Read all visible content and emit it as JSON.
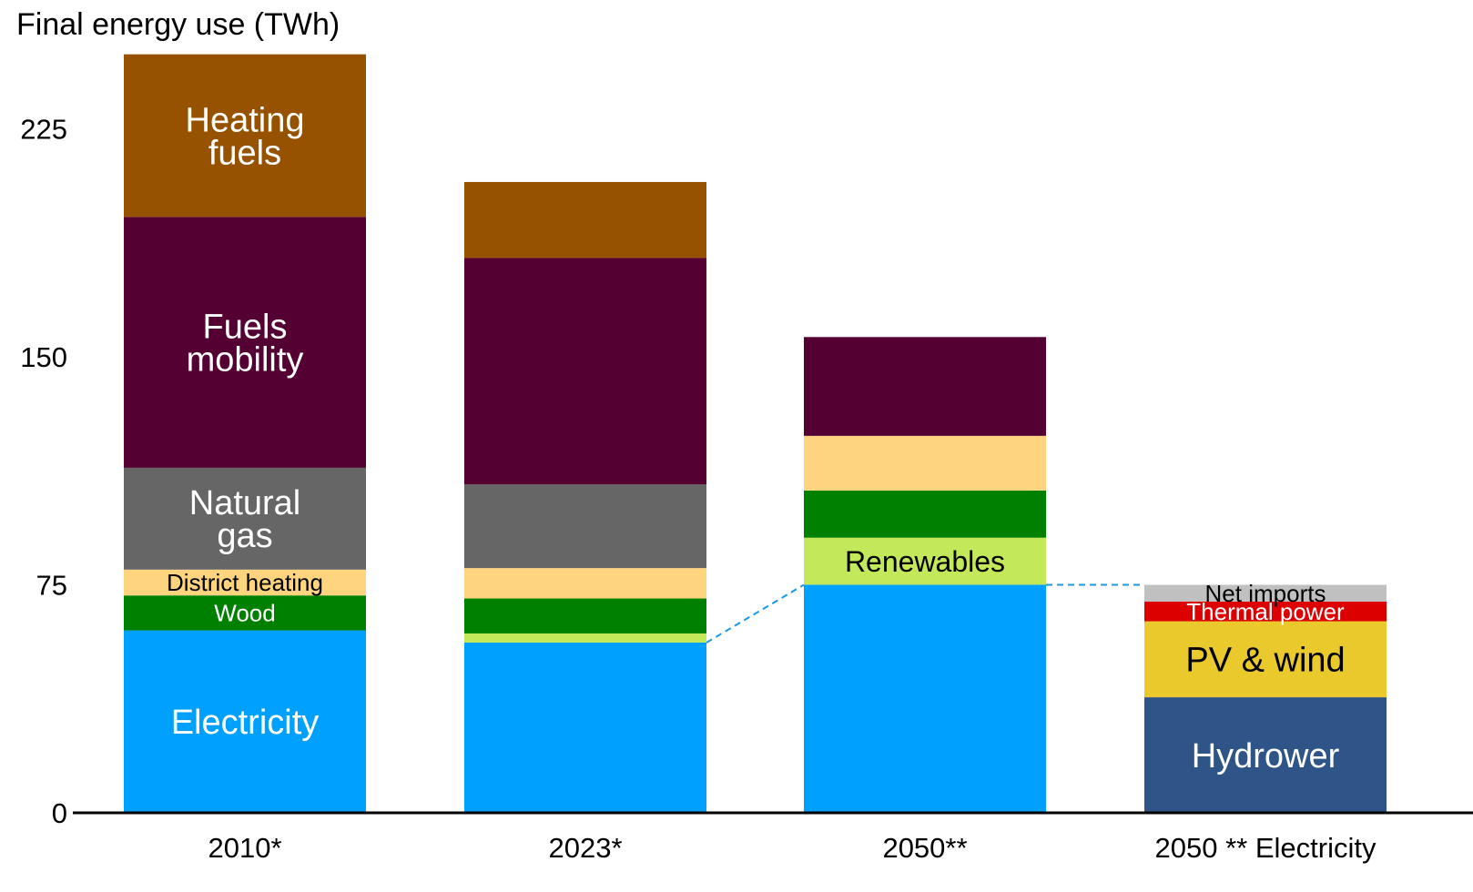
{
  "chart_data": {
    "type": "bar",
    "stacked": true,
    "ylabel": "Final energy use (TWh)",
    "yticks": [
      0,
      75,
      150,
      225
    ],
    "ylim": [
      0,
      250
    ],
    "grid": false,
    "categories": [
      "2010*",
      "2023*",
      "2050**",
      "2050 ** Electricity"
    ],
    "segments": [
      [
        {
          "name": "Electricity",
          "value": 60,
          "color": "#00a0ff",
          "label": [
            "Electricity"
          ],
          "label_color": "#ffffff"
        },
        {
          "name": "Wood",
          "value": 11.5,
          "color": "#008000",
          "label": [
            "Wood"
          ],
          "label_color": "#ffffff"
        },
        {
          "name": "District heating",
          "value": 8.5,
          "color": "#ffd47f",
          "label": [
            "District heating"
          ],
          "label_color": "#000000"
        },
        {
          "name": "Natural gas",
          "value": 33.5,
          "color": "#666666",
          "label": [
            "Natural",
            "gas"
          ],
          "label_color": "#ffffff"
        },
        {
          "name": "Fuels mobility",
          "value": 82.5,
          "color": "#540033",
          "label": [
            "Fuels",
            "mobility"
          ],
          "label_color": "#ffffff"
        },
        {
          "name": "Heating fuels",
          "value": 53.5,
          "color": "#975200",
          "label": [
            "Heating",
            "fuels"
          ],
          "label_color": "#ffffff"
        }
      ],
      [
        {
          "name": "Electricity",
          "value": 56,
          "color": "#00a0ff",
          "label": [],
          "label_color": "#ffffff"
        },
        {
          "name": "Renewables",
          "value": 3,
          "color": "#c3e85a",
          "label": [],
          "label_color": "#000000"
        },
        {
          "name": "Wood",
          "value": 11.5,
          "color": "#008000",
          "label": [],
          "label_color": "#ffffff"
        },
        {
          "name": "District heating",
          "value": 10,
          "color": "#ffd47f",
          "label": [],
          "label_color": "#000000"
        },
        {
          "name": "Natural gas",
          "value": 27.5,
          "color": "#666666",
          "label": [],
          "label_color": "#ffffff"
        },
        {
          "name": "Fuels mobility",
          "value": 74.5,
          "color": "#540033",
          "label": [],
          "label_color": "#ffffff"
        },
        {
          "name": "Heating fuels",
          "value": 25,
          "color": "#975200",
          "label": [],
          "label_color": "#ffffff"
        }
      ],
      [
        {
          "name": "Electricity",
          "value": 75,
          "color": "#00a0ff",
          "label": [],
          "label_color": "#ffffff"
        },
        {
          "name": "Renewables",
          "value": 15.5,
          "color": "#c3e85a",
          "label": [
            "Renewables"
          ],
          "label_color": "#000000"
        },
        {
          "name": "Wood",
          "value": 15.5,
          "color": "#008000",
          "label": [],
          "label_color": "#ffffff"
        },
        {
          "name": "District heating",
          "value": 18,
          "color": "#ffd47f",
          "label": [],
          "label_color": "#000000"
        },
        {
          "name": "Fuels mobility",
          "value": 32.5,
          "color": "#540033",
          "label": [],
          "label_color": "#ffffff"
        }
      ],
      [
        {
          "name": "Hydrower",
          "value": 38,
          "color": "#2e5488",
          "label": [
            "Hydrower"
          ],
          "label_color": "#ffffff"
        },
        {
          "name": "PV & wind",
          "value": 25,
          "color": "#eac92c",
          "label": [
            "PV & wind"
          ],
          "label_color": "#000000"
        },
        {
          "name": "Thermal power",
          "value": 6.5,
          "color": "#dd0000",
          "label": [
            "Thermal power"
          ],
          "label_color": "#ffffff"
        },
        {
          "name": "Net imports",
          "value": 5.5,
          "color": "#c0c0c0",
          "label": [
            "Net  imports"
          ],
          "label_color": "#000000"
        }
      ]
    ],
    "connectors": [
      {
        "from_category": 1,
        "to_category": 2,
        "from_value": 56,
        "to_value": 75,
        "color": "#1a9ae8"
      },
      {
        "from_category": 2,
        "to_category": 3,
        "from_value": 75,
        "to_value": 75,
        "color": "#1a9ae8"
      }
    ]
  }
}
